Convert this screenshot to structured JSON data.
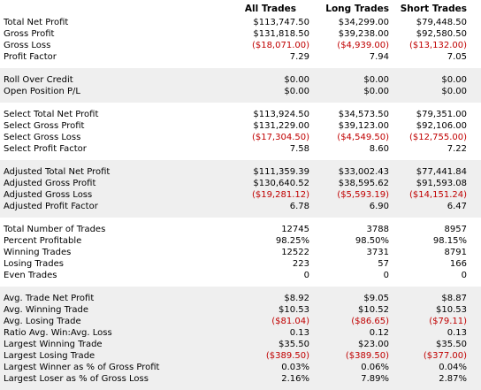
{
  "columns": [
    "All Trades",
    "Long Trades",
    "Short Trades"
  ],
  "groups": [
    {
      "rows": [
        {
          "label": "Total Net Profit",
          "values": [
            "$113,747.50",
            "$34,299.00",
            "$79,448.50"
          ]
        },
        {
          "label": "Gross Profit",
          "values": [
            "$131,818.50",
            "$39,238.00",
            "$92,580.50"
          ]
        },
        {
          "label": "Gross Loss",
          "values": [
            "($18,071.00)",
            "($4,939.00)",
            "($13,132.00)"
          ]
        },
        {
          "label": "Profit Factor",
          "values": [
            "7.29",
            "7.94",
            "7.05"
          ]
        }
      ]
    },
    {
      "rows": [
        {
          "label": "Roll Over Credit",
          "values": [
            "$0.00",
            "$0.00",
            "$0.00"
          ]
        },
        {
          "label": "Open Position P/L",
          "values": [
            "$0.00",
            "$0.00",
            "$0.00"
          ]
        }
      ]
    },
    {
      "rows": [
        {
          "label": "Select Total Net Profit",
          "values": [
            "$113,924.50",
            "$34,573.50",
            "$79,351.00"
          ]
        },
        {
          "label": "Select Gross Profit",
          "values": [
            "$131,229.00",
            "$39,123.00",
            "$92,106.00"
          ]
        },
        {
          "label": "Select Gross Loss",
          "values": [
            "($17,304.50)",
            "($4,549.50)",
            "($12,755.00)"
          ]
        },
        {
          "label": "Select Profit Factor",
          "values": [
            "7.58",
            "8.60",
            "7.22"
          ]
        }
      ]
    },
    {
      "rows": [
        {
          "label": "Adjusted Total Net Profit",
          "values": [
            "$111,359.39",
            "$33,002.43",
            "$77,441.84"
          ]
        },
        {
          "label": "Adjusted Gross Profit",
          "values": [
            "$130,640.52",
            "$38,595.62",
            "$91,593.08"
          ]
        },
        {
          "label": "Adjusted Gross Loss",
          "values": [
            "($19,281.12)",
            "($5,593.19)",
            "($14,151.24)"
          ]
        },
        {
          "label": "Adjusted Profit Factor",
          "values": [
            "6.78",
            "6.90",
            "6.47"
          ]
        }
      ]
    },
    {
      "rows": [
        {
          "label": "Total Number of Trades",
          "values": [
            "12745",
            "3788",
            "8957"
          ]
        },
        {
          "label": "Percent Profitable",
          "values": [
            "98.25%",
            "98.50%",
            "98.15%"
          ]
        },
        {
          "label": "Winning Trades",
          "values": [
            "12522",
            "3731",
            "8791"
          ]
        },
        {
          "label": "Losing Trades",
          "values": [
            "223",
            "57",
            "166"
          ]
        },
        {
          "label": "Even Trades",
          "values": [
            "0",
            "0",
            "0"
          ]
        }
      ]
    },
    {
      "rows": [
        {
          "label": "Avg. Trade Net Profit",
          "values": [
            "$8.92",
            "$9.05",
            "$8.87"
          ]
        },
        {
          "label": "Avg. Winning Trade",
          "values": [
            "$10.53",
            "$10.52",
            "$10.53"
          ]
        },
        {
          "label": "Avg. Losing Trade",
          "values": [
            "($81.04)",
            "($86.65)",
            "($79.11)"
          ]
        },
        {
          "label": "Ratio Avg. Win:Avg. Loss",
          "values": [
            "0.13",
            "0.12",
            "0.13"
          ]
        },
        {
          "label": "Largest Winning Trade",
          "values": [
            "$35.50",
            "$23.00",
            "$35.50"
          ]
        },
        {
          "label": "Largest Losing Trade",
          "values": [
            "($389.50)",
            "($389.50)",
            "($377.00)"
          ]
        },
        {
          "label": "Largest Winner as % of Gross Profit",
          "values": [
            "0.03%",
            "0.06%",
            "0.04%"
          ]
        },
        {
          "label": "Largest Loser as % of Gross Loss",
          "values": [
            "2.16%",
            "7.89%",
            "2.87%"
          ]
        }
      ]
    }
  ]
}
